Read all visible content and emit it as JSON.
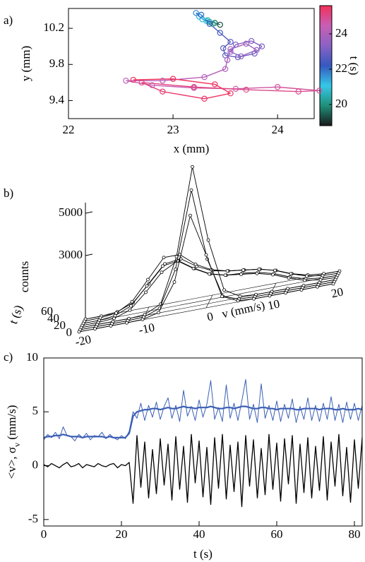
{
  "chart_data": [
    {
      "type": "scatter",
      "panel_label": "a)",
      "xlabel": "x (mm)",
      "ylabel": "y (mm)",
      "xlim": [
        22,
        24.35
      ],
      "ylim": [
        9.2,
        10.42
      ],
      "xticks": [
        22,
        23,
        24
      ],
      "yticks": [
        9.4,
        9.8,
        10.2
      ],
      "x": [
        23.45,
        23.4,
        23.35,
        23.38,
        23.33,
        23.28,
        23.32,
        23.25,
        23.22,
        23.27,
        23.35,
        23.45,
        23.55,
        23.48,
        23.5,
        23.62,
        23.78,
        23.85,
        23.75,
        23.6,
        23.55,
        23.65,
        23.8,
        23.7,
        23.55,
        23.52,
        23.5,
        23.3,
        22.9,
        22.55,
        22.8,
        23.2,
        23.6,
        24.0,
        24.4,
        24.2,
        23.7,
        23.2,
        22.7,
        22.9,
        23.3,
        23.55,
        23.4,
        23.0,
        22.62
      ],
      "y": [
        10.24,
        10.26,
        10.27,
        10.25,
        10.29,
        10.3,
        10.28,
        10.33,
        10.37,
        10.35,
        10.25,
        10.15,
        10.05,
        9.98,
        9.9,
        9.88,
        9.92,
        10.0,
        10.06,
        10.02,
        9.94,
        9.89,
        9.96,
        10.03,
        9.97,
        9.85,
        9.75,
        9.66,
        9.62,
        9.62,
        9.57,
        9.54,
        9.53,
        9.55,
        9.51,
        9.5,
        9.52,
        9.55,
        9.6,
        9.5,
        9.42,
        9.48,
        9.58,
        9.64,
        9.63
      ],
      "t": [
        19.3,
        19.6,
        19.9,
        20.2,
        20.5,
        20.8,
        21.1,
        21.4,
        21.7,
        22.0,
        22.2,
        22.4,
        22.6,
        22.7,
        22.8,
        22.9,
        23.0,
        23.1,
        23.2,
        23.3,
        23.4,
        23.5,
        23.6,
        23.7,
        23.8,
        23.9,
        24.0,
        24.1,
        24.2,
        24.3,
        24.4,
        24.5,
        24.6,
        24.7,
        24.8,
        24.9,
        25.0,
        25.1,
        25.2,
        25.3,
        25.4,
        25.5,
        25.55,
        25.6,
        25.6
      ],
      "colorbar": {
        "label": "t (s)",
        "clim": [
          18.8,
          25.6
        ],
        "ticks": [
          20,
          22,
          24
        ],
        "colormap": [
          "#1a1a1a",
          "#1f8f7a",
          "#35c8e8",
          "#3558c0",
          "#8a62c4",
          "#c85fb5",
          "#f2305a"
        ]
      }
    },
    {
      "type": "waterfall3d",
      "panel_label": "b)",
      "xlabel": "v (mm/s)",
      "ylabel": "t (s)",
      "zlabel": "counts",
      "xlim": [
        -20,
        20
      ],
      "ylim": [
        0,
        60
      ],
      "zlim": [
        0,
        5500
      ],
      "xticks": [
        -20,
        -10,
        0,
        10,
        20
      ],
      "yticks": [
        0,
        20,
        40,
        60
      ],
      "zticks": [
        3000,
        5000
      ],
      "color": "#000000",
      "x": [
        -20,
        -17.5,
        -15,
        -12.5,
        -10,
        -7.5,
        -5,
        -2.5,
        0,
        2.5,
        5,
        7.5,
        10,
        12.5,
        15,
        17.5,
        20
      ],
      "series": [
        {
          "t": 0,
          "values": [
            0,
            0,
            0,
            0,
            20,
            200,
            1500,
            4500,
            2500,
            400,
            50,
            0,
            0,
            0,
            0,
            0,
            0
          ]
        },
        {
          "t": 10,
          "values": [
            0,
            0,
            0,
            0,
            30,
            300,
            2000,
            5600,
            2200,
            300,
            30,
            0,
            0,
            0,
            0,
            0,
            0
          ]
        },
        {
          "t": 20,
          "values": [
            0,
            0,
            0,
            0,
            50,
            400,
            2500,
            6600,
            3000,
            500,
            60,
            0,
            0,
            0,
            0,
            0,
            0
          ]
        },
        {
          "t": 30,
          "values": [
            0,
            0,
            50,
            300,
            1000,
            1800,
            2200,
            1700,
            1300,
            1100,
            1000,
            900,
            700,
            400,
            150,
            30,
            0
          ]
        },
        {
          "t": 40,
          "values": [
            0,
            0,
            80,
            400,
            1200,
            2000,
            2100,
            1600,
            1200,
            1000,
            950,
            850,
            650,
            350,
            120,
            20,
            0
          ]
        },
        {
          "t": 50,
          "values": [
            0,
            20,
            100,
            500,
            1400,
            2300,
            2300,
            1700,
            1300,
            1100,
            1000,
            900,
            700,
            400,
            150,
            30,
            0
          ]
        },
        {
          "t": 60,
          "values": [
            0,
            0,
            60,
            350,
            1100,
            1900,
            2000,
            1500,
            1150,
            1000,
            900,
            800,
            600,
            300,
            100,
            20,
            0
          ]
        }
      ]
    },
    {
      "type": "line",
      "panel_label": "c)",
      "xlabel": "t (s)",
      "ylabel": [
        "<v>, σ",
        "v",
        " (mm/s)"
      ],
      "xlim": [
        0,
        82
      ],
      "ylim": [
        -5.6,
        10
      ],
      "xticks": [
        0,
        20,
        40,
        60,
        80
      ],
      "yticks": [
        -5,
        0,
        5,
        10
      ],
      "x": [
        0,
        1,
        2,
        3,
        4,
        5,
        6,
        7,
        8,
        9,
        10,
        11,
        12,
        13,
        14,
        15,
        16,
        17,
        18,
        19,
        20,
        21,
        22,
        23,
        24,
        25,
        26,
        27,
        28,
        29,
        30,
        31,
        32,
        33,
        34,
        35,
        36,
        37,
        38,
        39,
        40,
        41,
        42,
        43,
        44,
        45,
        46,
        47,
        48,
        49,
        50,
        51,
        52,
        53,
        54,
        55,
        56,
        57,
        58,
        59,
        60,
        61,
        62,
        63,
        64,
        65,
        66,
        67,
        68,
        69,
        70,
        71,
        72,
        73,
        74,
        75,
        76,
        77,
        78,
        79,
        80,
        81,
        82
      ],
      "series": [
        {
          "color": "#3b5fb4",
          "linewidth": 1,
          "values": [
            2.4,
            2.9,
            2.6,
            3.1,
            2.5,
            3.6,
            2.8,
            2.7,
            2.3,
            2.9,
            2.6,
            3.0,
            2.4,
            2.8,
            2.7,
            3.1,
            2.5,
            2.9,
            2.6,
            2.4,
            2.8,
            2.5,
            3.2,
            5.0,
            4.4,
            5.8,
            4.2,
            5.6,
            4.5,
            5.9,
            4.3,
            5.5,
            6.3,
            4.4,
            5.6,
            4.1,
            7.0,
            4.6,
            5.5,
            4.2,
            6.1,
            4.5,
            5.7,
            7.9,
            4.3,
            5.4,
            4.1,
            7.5,
            4.4,
            5.8,
            4.2,
            6.0,
            8.0,
            4.3,
            5.7,
            4.0,
            7.6,
            4.4,
            5.6,
            4.2,
            6.0,
            4.1,
            5.7,
            4.4,
            6.2,
            4.0,
            5.5,
            4.3,
            6.3,
            4.2,
            5.6,
            4.1,
            5.8,
            4.3,
            6.4,
            4.2,
            5.7,
            4.0,
            5.9,
            4.3,
            5.8,
            4.2,
            5.6
          ]
        },
        {
          "color": "#3b5fb4",
          "linewidth": 2.2,
          "values": [
            2.6,
            2.7,
            2.7,
            2.8,
            2.8,
            2.9,
            2.8,
            2.7,
            2.7,
            2.7,
            2.6,
            2.7,
            2.7,
            2.7,
            2.7,
            2.7,
            2.6,
            2.7,
            2.6,
            2.6,
            2.6,
            2.6,
            3.0,
            4.6,
            5.0,
            5.1,
            5.2,
            5.2,
            5.3,
            5.3,
            5.2,
            5.3,
            5.4,
            5.3,
            5.3,
            5.4,
            5.5,
            5.4,
            5.4,
            5.3,
            5.4,
            5.4,
            5.4,
            5.5,
            5.4,
            5.3,
            5.3,
            5.4,
            5.4,
            5.3,
            5.4,
            5.5,
            5.5,
            5.4,
            5.3,
            5.3,
            5.4,
            5.4,
            5.3,
            5.3,
            5.2,
            5.3,
            5.3,
            5.3,
            5.3,
            5.2,
            5.2,
            5.3,
            5.3,
            5.3,
            5.3,
            5.2,
            5.3,
            5.3,
            5.3,
            5.2,
            5.2,
            5.3,
            5.2,
            5.2,
            5.2,
            5.3,
            5.2
          ]
        },
        {
          "color": "#000000",
          "linewidth": 1.3,
          "values": [
            0.1,
            -0.1,
            0.2,
            0,
            -0.2,
            0.1,
            0.3,
            -0.1,
            0,
            0.2,
            -0.2,
            0.1,
            0,
            -0.1,
            0.2,
            0,
            -0.1,
            0.1,
            0.2,
            -0.2,
            0.1,
            0,
            0.3,
            -3.5,
            2.8,
            -2.0,
            2.2,
            -3.0,
            1.5,
            -2.6,
            2.5,
            -1.8,
            2.0,
            -3.2,
            2.7,
            -2.2,
            1.8,
            -3.4,
            2.9,
            -1.6,
            2.3,
            -2.9,
            1.7,
            -3.6,
            2.6,
            -2.1,
            2.9,
            -3.1,
            1.9,
            -2.4,
            2.2,
            -3.8,
            2.8,
            -1.9,
            2.4,
            -3.0,
            1.6,
            -2.7,
            2.9,
            -2.2,
            2.1,
            -3.3,
            2.5,
            -1.7,
            2.8,
            -3.5,
            2.0,
            -2.5,
            2.6,
            -3.0,
            1.8,
            -2.3,
            2.7,
            -3.2,
            2.2,
            -1.9,
            2.9,
            -2.8,
            1.7,
            -3.4,
            2.4,
            -2.1,
            2.6
          ]
        }
      ]
    }
  ]
}
